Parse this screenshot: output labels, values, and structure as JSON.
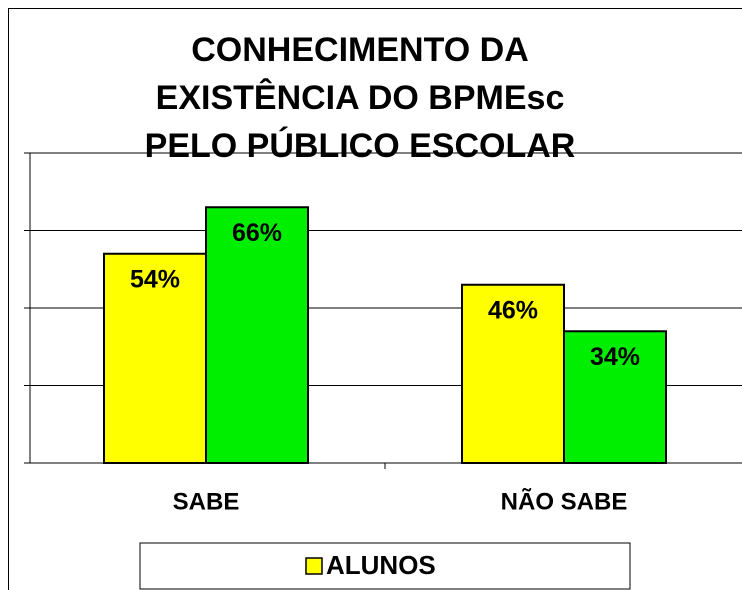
{
  "chart_data": {
    "type": "bar",
    "title": [
      "CONHECIMENTO DA",
      "EXISTÊNCIA DO BPMEsc",
      "PELO PÚBLICO ESCOLAR"
    ],
    "categories": [
      "SABE",
      "NÃO SABE"
    ],
    "series": [
      {
        "name": "ALUNOS",
        "color": "#ffff00",
        "values": [
          54,
          46
        ],
        "value_labels": [
          "54%",
          "46%"
        ]
      },
      {
        "color": "#00ee00",
        "values": [
          66,
          34
        ],
        "value_labels": [
          "66%",
          "34%"
        ]
      }
    ],
    "ylim": [
      0,
      80
    ],
    "yticks": [
      0,
      20,
      40,
      60,
      80
    ],
    "grid": true
  }
}
